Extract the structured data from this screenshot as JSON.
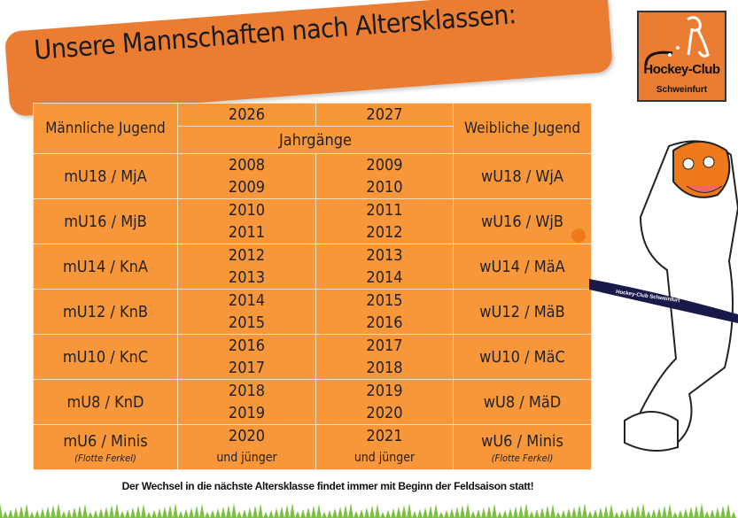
{
  "title": "Unsere Mannschaften nach Altersklassen:",
  "logo": {
    "name": "Hockey-Club",
    "city": "Schweinfurt"
  },
  "table": {
    "header": {
      "male": "Männliche Jugend",
      "female": "Weibliche Jugend",
      "year1": "2026",
      "year2": "2027",
      "birth_years": "Jahrgänge"
    },
    "rows": [
      {
        "male": "mU18 / MjA",
        "y1a": "2008",
        "y1b": "2009",
        "y2a": "2009",
        "y2b": "2010",
        "female": "wU18 / WjA"
      },
      {
        "male": "mU16 / MjB",
        "y1a": "2010",
        "y1b": "2011",
        "y2a": "2011",
        "y2b": "2012",
        "female": "wU16 / WjB"
      },
      {
        "male": "mU14 / KnA",
        "y1a": "2012",
        "y1b": "2013",
        "y2a": "2013",
        "y2b": "2014",
        "female": "wU14 / MäA"
      },
      {
        "male": "mU12 / KnB",
        "y1a": "2014",
        "y1b": "2015",
        "y2a": "2015",
        "y2b": "2016",
        "female": "wU12 / MäB"
      },
      {
        "male": "mU10 / KnC",
        "y1a": "2016",
        "y1b": "2017",
        "y2a": "2017",
        "y2b": "2018",
        "female": "wU10 / MäC"
      },
      {
        "male": "mU8 / KnD",
        "y1a": "2018",
        "y1b": "2019",
        "y2a": "2019",
        "y2b": "2020",
        "female": "wU8 / MäD"
      }
    ],
    "last_row": {
      "male": "mU6 / Minis",
      "male_sub": "(Flotte Ferkel)",
      "y1a": "2020",
      "y1b": "und jünger",
      "y2a": "2021",
      "y2b": "und jünger",
      "female": "wU6 / Minis",
      "female_sub": "(Flotte Ferkel)"
    }
  },
  "mascot_stick_text": "Hockey-Club Schweinfurt",
  "footer": "Der Wechsel in die nächste Altersklasse findet immer mit Beginn der Feldsaison statt!",
  "colors": {
    "banner": "#ea7d32",
    "table": "#f8963a",
    "grass": "#7dc142"
  }
}
